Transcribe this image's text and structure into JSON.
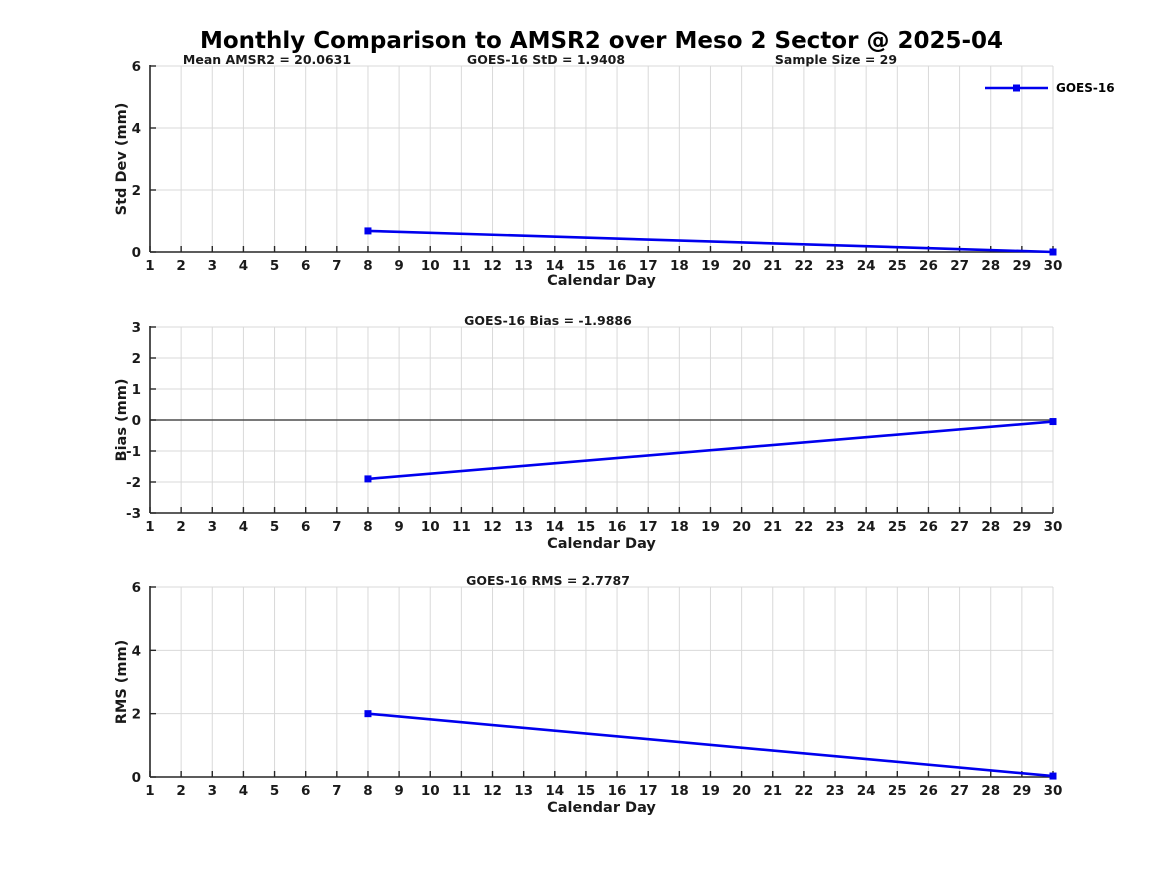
{
  "figure": {
    "title": "Monthly Comparison to AMSR2 over Meso 2 Sector @ 2025-04"
  },
  "colors": {
    "line": "#0000EE",
    "grid": "#d9d9d9",
    "axis": "#262626",
    "text": "#1a1a1a",
    "zero_line": "#4d4d4d",
    "background": "#ffffff"
  },
  "legend": {
    "label": "GOES-16",
    "position": "upper-right-outside",
    "marker": "square"
  },
  "chart_data": [
    {
      "type": "line",
      "ylabel": "Std Dev (mm)",
      "xlabel": "Calendar Day",
      "xlim": [
        1,
        30
      ],
      "ylim": [
        0,
        6
      ],
      "yticks": [
        0,
        2,
        4,
        6
      ],
      "xticks": [
        1,
        2,
        3,
        4,
        5,
        6,
        7,
        8,
        9,
        10,
        11,
        12,
        13,
        14,
        15,
        16,
        17,
        18,
        19,
        20,
        21,
        22,
        23,
        24,
        25,
        26,
        27,
        28,
        29,
        30
      ],
      "grid": true,
      "zero_line": false,
      "annotations": [
        {
          "text": "Mean AMSR2 = 20.0631",
          "xfrac": 0.13
        },
        {
          "text": "GOES-16 StD = 1.9408",
          "xfrac": 0.438
        },
        {
          "text": "Sample Size = 29",
          "xfrac": 0.76
        }
      ],
      "series": [
        {
          "name": "GOES-16",
          "x": [
            8,
            30
          ],
          "y": [
            0.68,
            0.0
          ]
        }
      ]
    },
    {
      "type": "line",
      "ylabel": "Bias (mm)",
      "xlabel": "Calendar Day",
      "xlim": [
        1,
        30
      ],
      "ylim": [
        -3,
        3
      ],
      "yticks": [
        -3,
        -2,
        -1,
        0,
        1,
        2,
        3
      ],
      "xticks": [
        1,
        2,
        3,
        4,
        5,
        6,
        7,
        8,
        9,
        10,
        11,
        12,
        13,
        14,
        15,
        16,
        17,
        18,
        19,
        20,
        21,
        22,
        23,
        24,
        25,
        26,
        27,
        28,
        29,
        30
      ],
      "grid": true,
      "zero_line": true,
      "annotations": [
        {
          "text": "GOES-16 Bias = -1.9886",
          "xfrac": 0.44
        }
      ],
      "series": [
        {
          "name": "GOES-16",
          "x": [
            8,
            30
          ],
          "y": [
            -1.9,
            -0.05
          ]
        }
      ]
    },
    {
      "type": "line",
      "ylabel": "RMS (mm)",
      "xlabel": "Calendar Day",
      "xlim": [
        1,
        30
      ],
      "ylim": [
        0,
        6
      ],
      "yticks": [
        0,
        2,
        4,
        6
      ],
      "xticks": [
        1,
        2,
        3,
        4,
        5,
        6,
        7,
        8,
        9,
        10,
        11,
        12,
        13,
        14,
        15,
        16,
        17,
        18,
        19,
        20,
        21,
        22,
        23,
        24,
        25,
        26,
        27,
        28,
        29,
        30
      ],
      "grid": true,
      "zero_line": false,
      "annotations": [
        {
          "text": "GOES-16 RMS = 2.7787",
          "xfrac": 0.44
        }
      ],
      "series": [
        {
          "name": "GOES-16",
          "x": [
            8,
            30
          ],
          "y": [
            2.0,
            0.03
          ]
        }
      ]
    }
  ]
}
